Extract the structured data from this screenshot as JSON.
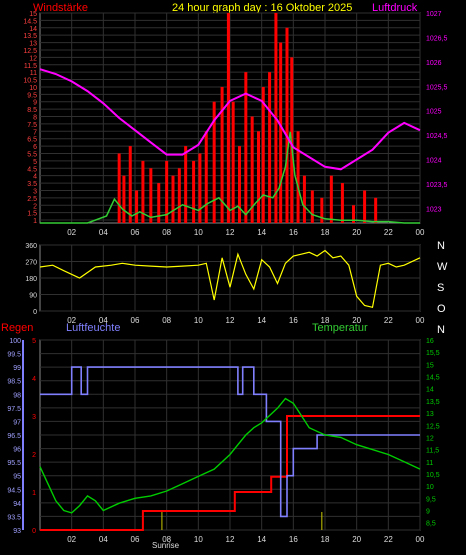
{
  "header": {
    "wind_label": "Windstärke",
    "title": "24 hour graph day : 16 Oktober 2025",
    "pressure_label": "Luftdruck"
  },
  "mid_header": {
    "rain_label": "Regen",
    "humidity_label": "Luftfeuchte",
    "temp_label": "Temperatur"
  },
  "compass": [
    "N",
    "W",
    "S",
    "O",
    "N"
  ],
  "sunrise_label": "Sunrise",
  "colors": {
    "background": "#000000",
    "wind": "#ff0000",
    "gust": "#33cc33",
    "pressure": "#ff00ff",
    "winddir": "#ffff00",
    "rain": "#ff0000",
    "humidity": "#8080ff",
    "temperature": "#00cc00",
    "grid": "#303030",
    "axis_text": "#dddddd"
  },
  "chart_data": [
    {
      "type": "line",
      "id": "wind_pressure",
      "title": "24 hour graph day : 16 Oktober 2025",
      "x_tick_labels": [
        "02",
        "04",
        "06",
        "08",
        "10",
        "12",
        "14",
        "16",
        "18",
        "20",
        "22",
        "00"
      ],
      "xlim": [
        0,
        24
      ],
      "left_axis": {
        "label": "Windstärke",
        "ticks": [
          "1",
          "1.5",
          "2",
          "2.5",
          "3",
          "3.5",
          "4",
          "4.5",
          "5",
          "5.5",
          "6",
          "6.5",
          "7",
          "7.5",
          "8",
          "8.5",
          "9",
          "9.5",
          "10",
          "10.5",
          "11",
          "11.5",
          "12",
          "12.5",
          "13",
          "13.5",
          "14",
          "14.5",
          "15"
        ],
        "ylim": [
          0,
          15
        ]
      },
      "right_axis": {
        "label": "Luftdruck",
        "ticks": [
          "1023",
          "1023,5",
          "1024",
          "1024,5",
          "1025",
          "1025,5",
          "1026",
          "1026,5",
          "1027"
        ],
        "ylim": [
          1022.7,
          1027
        ]
      },
      "series": [
        {
          "name": "Windstärke",
          "style": "bars",
          "x": [
            5.0,
            5.3,
            5.7,
            6.1,
            6.5,
            7.0,
            7.5,
            8.0,
            8.4,
            8.8,
            9.2,
            9.7,
            10.1,
            10.5,
            11.0,
            11.5,
            11.9,
            12.2,
            12.6,
            13.0,
            13.4,
            13.8,
            14.1,
            14.5,
            14.9,
            15.2,
            15.6,
            15.9,
            16.3,
            16.7,
            17.2,
            17.8,
            18.4,
            19.1,
            19.8,
            20.5,
            21.2
          ],
          "values": [
            5.5,
            4,
            6,
            3,
            5,
            4.5,
            3.5,
            5,
            4,
            4.5,
            6,
            5,
            5.5,
            7,
            9,
            10,
            15,
            9,
            6,
            11,
            8,
            7,
            10,
            11,
            15,
            13,
            14,
            12,
            7,
            4,
            3,
            2.5,
            4,
            3.5,
            2,
            3,
            2.5
          ]
        },
        {
          "name": "Böen",
          "x": [
            0,
            3,
            4.2,
            4.7,
            5.2,
            5.8,
            6.3,
            7,
            8,
            9,
            10,
            10.6,
            11.3,
            12,
            12.5,
            13,
            13.6,
            14.1,
            14.7,
            15.1,
            15.5,
            15.8,
            16.1,
            16.6,
            17.2,
            18,
            19,
            20,
            21,
            22,
            23,
            24
          ],
          "values": [
            0,
            0,
            0.5,
            1.7,
            1,
            0.5,
            0.8,
            0.4,
            0.6,
            1.3,
            0.9,
            1.4,
            1.8,
            0.9,
            1.2,
            0.6,
            1.4,
            2,
            1.8,
            2.5,
            4,
            6.5,
            3.4,
            1.3,
            0.6,
            0.3,
            0.2,
            0.2,
            0.1,
            0.1,
            0,
            0
          ]
        },
        {
          "name": "Luftdruck",
          "x": [
            0,
            1,
            2,
            3,
            4,
            5,
            6,
            7,
            8,
            9,
            10,
            11,
            12,
            13,
            14,
            15,
            16,
            17,
            18,
            19,
            20,
            21,
            22,
            23,
            24
          ],
          "values": [
            1025.85,
            1025.75,
            1025.6,
            1025.4,
            1025.15,
            1024.85,
            1024.6,
            1024.35,
            1024.1,
            1024.1,
            1024.3,
            1024.8,
            1025.2,
            1025.35,
            1025.2,
            1024.8,
            1024.25,
            1024.05,
            1023.85,
            1023.8,
            1024.0,
            1024.2,
            1024.55,
            1024.75,
            1024.6
          ]
        }
      ]
    },
    {
      "type": "line",
      "id": "wind_direction",
      "x_tick_labels": [
        "02",
        "04",
        "06",
        "08",
        "10",
        "12",
        "14",
        "16",
        "18",
        "20",
        "22",
        "00"
      ],
      "xlim": [
        0,
        24
      ],
      "left_axis": {
        "ticks": [
          "0",
          "90",
          "180",
          "270",
          "360"
        ],
        "ylim": [
          0,
          360
        ]
      },
      "right_axis": {
        "ticks": [
          "N",
          "W",
          "S",
          "O",
          "N"
        ]
      },
      "series": [
        {
          "name": "Windrichtung",
          "x": [
            0,
            0.8,
            1.5,
            2.5,
            3.5,
            4.5,
            5.2,
            6,
            7,
            8,
            9,
            10,
            10.5,
            11,
            11.5,
            12,
            12.5,
            13,
            13.5,
            14,
            14.5,
            15,
            15.5,
            16,
            16.5,
            17,
            17.5,
            18,
            18.5,
            19,
            19.5,
            20,
            20.5,
            21,
            21.5,
            22,
            22.5,
            23,
            24
          ],
          "values": [
            240,
            250,
            220,
            180,
            240,
            250,
            260,
            250,
            245,
            240,
            245,
            250,
            260,
            60,
            290,
            130,
            310,
            200,
            120,
            280,
            240,
            150,
            260,
            300,
            310,
            320,
            300,
            330,
            290,
            300,
            250,
            80,
            30,
            20,
            250,
            260,
            240,
            250,
            290
          ]
        }
      ]
    },
    {
      "type": "line",
      "id": "rain_humidity_temp",
      "x_tick_labels": [
        "02",
        "04",
        "06",
        "08",
        "10",
        "12",
        "14",
        "16",
        "18",
        "20",
        "22",
        "00"
      ],
      "xlim": [
        0,
        24
      ],
      "left_axis": {
        "label": "Luftfeuchte",
        "ticks": [
          "93",
          "93.5",
          "94",
          "94.5",
          "95",
          "95.5",
          "96",
          "96.5",
          "97",
          "97.5",
          "98",
          "98.5",
          "99",
          "99.5",
          "100"
        ],
        "ylim": [
          93,
          100
        ]
      },
      "rain_axis": {
        "label": "Regen",
        "ticks": [
          "0",
          "1",
          "2",
          "3",
          "4",
          "5"
        ],
        "ylim": [
          0,
          5
        ]
      },
      "right_axis": {
        "label": "Temperatur",
        "ticks": [
          "8,5",
          "9",
          "9,5",
          "10",
          "10,5",
          "11",
          "11,5",
          "12",
          "12,5",
          "13",
          "13,5",
          "14",
          "14,5",
          "15",
          "15,5",
          "16"
        ],
        "ylim": [
          8.2,
          16
        ]
      },
      "series": [
        {
          "name": "Regen",
          "step": true,
          "x": [
            0,
            6.5,
            6.5,
            12.3,
            12.3,
            14.6,
            14.6,
            15.6,
            15.6,
            24
          ],
          "values": [
            0,
            0,
            0.5,
            0.5,
            1,
            1,
            1.4,
            1.4,
            3,
            3
          ]
        },
        {
          "name": "Luftfeuchte",
          "step": true,
          "x": [
            0,
            2,
            2,
            2.6,
            2.6,
            3,
            3,
            3.5,
            3.5,
            12.5,
            12.5,
            12.8,
            12.8,
            13.5,
            13.5,
            14.3,
            14.3,
            15.2,
            15.2,
            15.6,
            15.6,
            16,
            16,
            17.5,
            17.5,
            24
          ],
          "values": [
            98,
            98,
            99,
            99,
            98,
            98,
            99,
            99,
            99,
            99,
            98,
            98,
            99,
            99,
            98,
            98,
            97,
            97,
            93.5,
            93.5,
            95,
            95,
            96,
            96,
            96.5,
            96.5
          ]
        },
        {
          "name": "Temperatur",
          "x": [
            0,
            0.5,
            1,
            1.5,
            2,
            2.5,
            3,
            3.5,
            4,
            5,
            6,
            7,
            8,
            9,
            10,
            11,
            12,
            12.5,
            13,
            13.5,
            14,
            14.5,
            15,
            15.5,
            16,
            16.5,
            17,
            18,
            19,
            20,
            21,
            22,
            23,
            24
          ],
          "values": [
            10.8,
            10.1,
            9.4,
            9.0,
            8.9,
            9.2,
            9.6,
            9.4,
            9.0,
            9.3,
            9.5,
            9.6,
            9.8,
            10.1,
            10.4,
            10.7,
            11.3,
            11.7,
            12.1,
            12.4,
            12.6,
            12.9,
            13.2,
            13.6,
            13.4,
            12.9,
            12.4,
            12.1,
            12.0,
            11.7,
            11.5,
            11.3,
            11.0,
            10.7
          ]
        }
      ],
      "annotations": [
        "Sunrise"
      ]
    }
  ]
}
